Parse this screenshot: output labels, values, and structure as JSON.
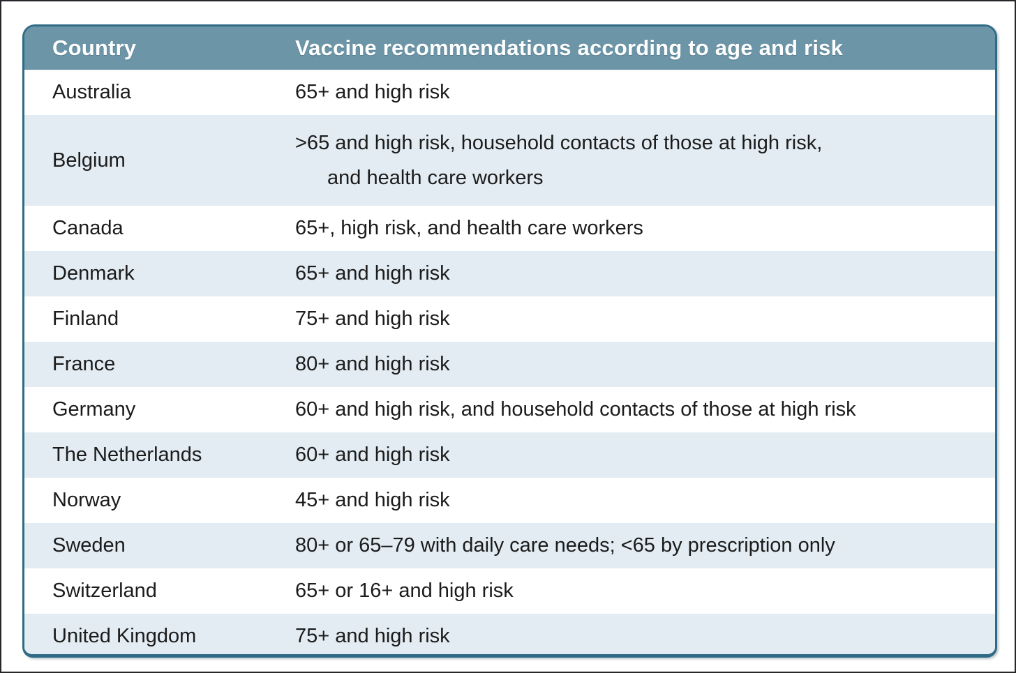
{
  "colors": {
    "header_bg": "#6c95a8",
    "table_border": "#2f6b85",
    "stripe_bg": "#e2ecf2",
    "row_bg": "#ffffff",
    "header_text": "#ffffff",
    "body_text": "#1b1b1b",
    "outer_frame": "#26272b"
  },
  "table": {
    "header": {
      "country": "Country",
      "recommendations": "Vaccine recommendations according to age and risk"
    },
    "rows": [
      {
        "country": "Australia",
        "recommendation": "65+ and high risk"
      },
      {
        "country": "Belgium",
        "recommendation": ">65 and high risk, household contacts of those at high risk,",
        "recommendation_cont": "and health care workers"
      },
      {
        "country": "Canada",
        "recommendation": "65+, high risk, and health care workers"
      },
      {
        "country": "Denmark",
        "recommendation": "65+ and high risk"
      },
      {
        "country": "Finland",
        "recommendation": "75+ and high risk"
      },
      {
        "country": "France",
        "recommendation": "80+ and high risk"
      },
      {
        "country": "Germany",
        "recommendation": "60+ and high risk, and household contacts of those at high risk"
      },
      {
        "country": "The Netherlands",
        "recommendation": "60+ and high risk"
      },
      {
        "country": "Norway",
        "recommendation": "45+ and high risk"
      },
      {
        "country": "Sweden",
        "recommendation": "80+ or 65–79 with daily care needs; <65 by prescription only"
      },
      {
        "country": "Switzerland",
        "recommendation": "65+ or 16+ and high risk"
      },
      {
        "country": "United Kingdom",
        "recommendation": "75+ and high risk"
      }
    ]
  }
}
